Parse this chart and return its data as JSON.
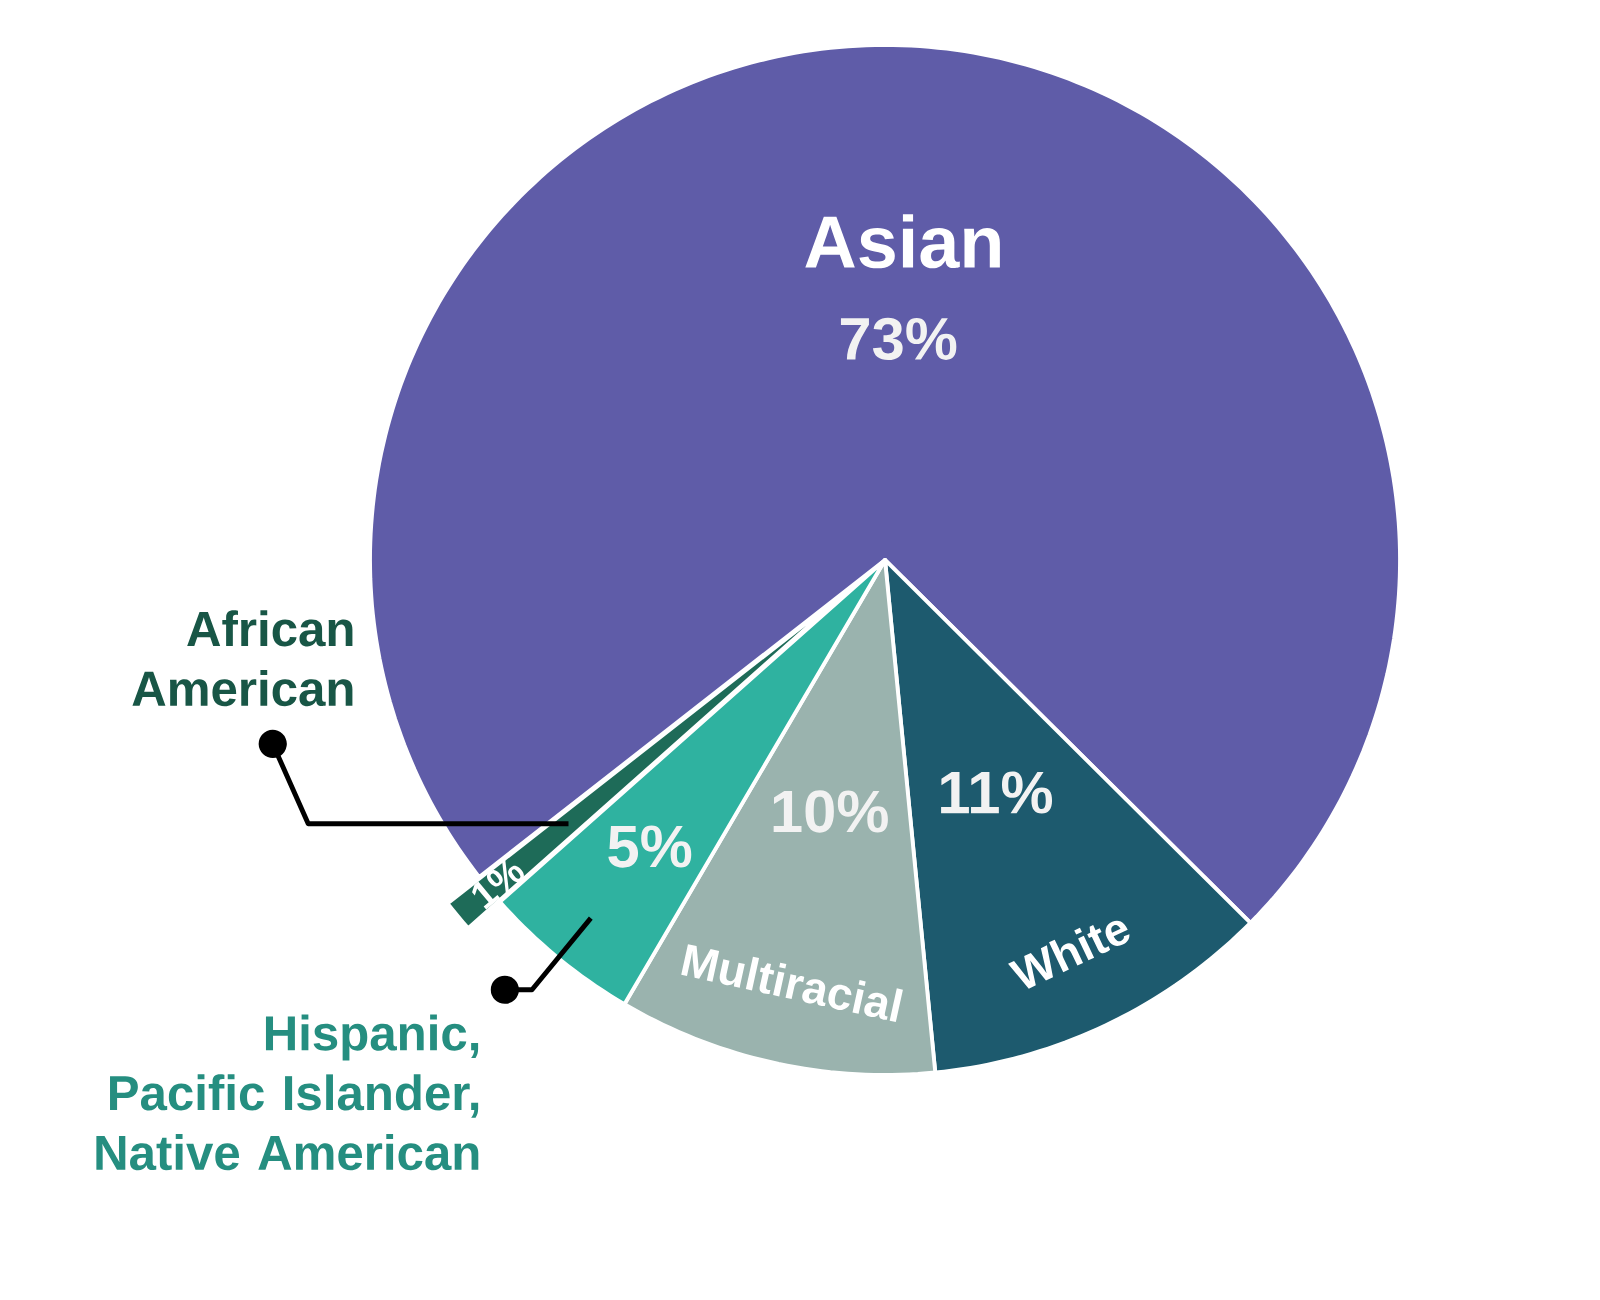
{
  "chart_data": {
    "type": "pie",
    "categories": [
      "Asian",
      "White",
      "Multiracial",
      "Hispanic, Pacific Islander, Native American",
      "African American"
    ],
    "values": [
      73,
      11,
      10,
      5,
      1
    ],
    "colors": [
      "#5f5ca8",
      "#1d5a6e",
      "#9ab3ae",
      "#2fb2a0",
      "#1e6b58"
    ],
    "value_labels": [
      "73%",
      "11%",
      "10%",
      "5%",
      "1%"
    ]
  }
}
